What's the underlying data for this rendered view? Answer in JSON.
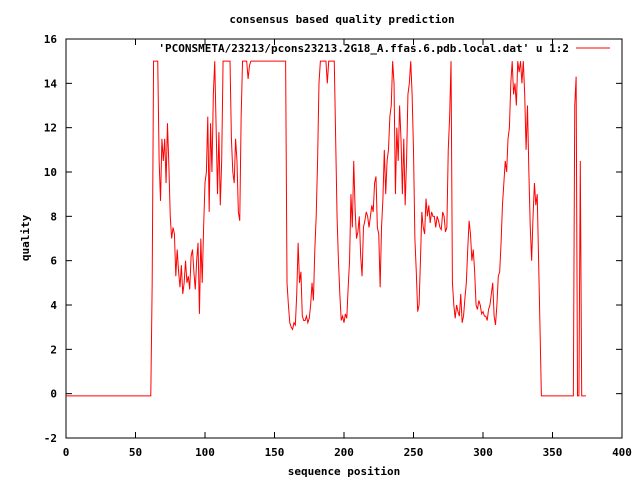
{
  "chart_data": {
    "type": "line",
    "title": "consensus based quality prediction",
    "xlabel": "sequence position",
    "ylabel": "quality",
    "xlim": [
      0,
      400
    ],
    "ylim": [
      -2,
      16
    ],
    "xticks": [
      0,
      50,
      100,
      150,
      200,
      250,
      300,
      350,
      400
    ],
    "yticks": [
      -2,
      0,
      2,
      4,
      6,
      8,
      10,
      12,
      14,
      16
    ],
    "grid": false,
    "legend_position": "top-right",
    "series": [
      {
        "name": "'PCONSMETA/23213/pcons23213.2G18_A.ffas.6.pdb.local.dat' u 1:2",
        "color": "#ff0000",
        "points": [
          [
            0,
            -0.1
          ],
          [
            61,
            -0.1
          ],
          [
            62,
            5
          ],
          [
            63,
            15
          ],
          [
            66,
            15
          ],
          [
            67,
            10.5
          ],
          [
            68,
            8.7
          ],
          [
            69,
            11.5
          ],
          [
            70,
            10.5
          ],
          [
            71,
            11.5
          ],
          [
            72,
            9.5
          ],
          [
            73,
            12.2
          ],
          [
            74,
            10.3
          ],
          [
            75,
            8
          ],
          [
            76,
            7
          ],
          [
            77,
            7.5
          ],
          [
            78,
            7.2
          ],
          [
            79,
            5.3
          ],
          [
            80,
            6.5
          ],
          [
            81,
            5.5
          ],
          [
            82,
            4.8
          ],
          [
            83,
            5.8
          ],
          [
            84,
            4.5
          ],
          [
            85,
            5
          ],
          [
            86,
            6
          ],
          [
            87,
            5
          ],
          [
            88,
            5.3
          ],
          [
            89,
            4.7
          ],
          [
            90,
            6.2
          ],
          [
            91,
            6.5
          ],
          [
            92,
            5.5
          ],
          [
            93,
            4.7
          ],
          [
            94,
            6
          ],
          [
            95,
            6.8
          ],
          [
            96,
            3.6
          ],
          [
            97,
            7
          ],
          [
            98,
            5
          ],
          [
            99,
            7.5
          ],
          [
            100,
            9.5
          ],
          [
            101,
            10
          ],
          [
            102,
            12.5
          ],
          [
            103,
            8.2
          ],
          [
            104,
            12.2
          ],
          [
            105,
            10
          ],
          [
            106,
            13.5
          ],
          [
            107,
            15
          ],
          [
            108,
            12
          ],
          [
            109,
            9
          ],
          [
            110,
            11.8
          ],
          [
            111,
            8.5
          ],
          [
            112,
            10.5
          ],
          [
            113,
            15
          ],
          [
            114,
            15
          ],
          [
            118,
            15
          ],
          [
            119,
            11.5
          ],
          [
            120,
            10
          ],
          [
            121,
            9.5
          ],
          [
            122,
            11.5
          ],
          [
            123,
            10.5
          ],
          [
            124,
            8.2
          ],
          [
            125,
            7.8
          ],
          [
            126,
            12.5
          ],
          [
            127,
            15
          ],
          [
            129,
            15
          ],
          [
            130,
            15
          ],
          [
            131,
            14.2
          ],
          [
            132,
            14.8
          ],
          [
            133,
            15
          ],
          [
            158,
            15
          ],
          [
            159,
            5
          ],
          [
            160,
            4
          ],
          [
            161,
            3.2
          ],
          [
            162,
            3
          ],
          [
            163,
            2.9
          ],
          [
            164,
            3.2
          ],
          [
            165,
            3.1
          ],
          [
            166,
            4.5
          ],
          [
            167,
            6.8
          ],
          [
            168,
            5
          ],
          [
            169,
            5.5
          ],
          [
            170,
            3.5
          ],
          [
            171,
            3.3
          ],
          [
            172,
            3.3
          ],
          [
            173,
            3.5
          ],
          [
            174,
            3.2
          ],
          [
            175,
            3.4
          ],
          [
            176,
            4
          ],
          [
            177,
            5
          ],
          [
            178,
            4.2
          ],
          [
            179,
            6.5
          ],
          [
            180,
            8
          ],
          [
            181,
            10.5
          ],
          [
            182,
            14
          ],
          [
            183,
            15
          ],
          [
            187,
            15
          ],
          [
            188,
            14
          ],
          [
            189,
            15
          ],
          [
            193,
            15
          ],
          [
            194,
            11.5
          ],
          [
            195,
            8
          ],
          [
            196,
            6
          ],
          [
            197,
            4.5
          ],
          [
            198,
            3.3
          ],
          [
            199,
            3.5
          ],
          [
            200,
            3.2
          ],
          [
            201,
            3.6
          ],
          [
            202,
            3.4
          ],
          [
            203,
            4.8
          ],
          [
            204,
            6
          ],
          [
            205,
            9
          ],
          [
            206,
            7.5
          ],
          [
            207,
            10.5
          ],
          [
            208,
            8.3
          ],
          [
            209,
            7
          ],
          [
            210,
            7.3
          ],
          [
            211,
            8
          ],
          [
            212,
            6.2
          ],
          [
            213,
            5.3
          ],
          [
            214,
            7.5
          ],
          [
            215,
            7.8
          ],
          [
            216,
            8.2
          ],
          [
            217,
            8
          ],
          [
            218,
            7.5
          ],
          [
            219,
            8
          ],
          [
            220,
            8.5
          ],
          [
            221,
            8.2
          ],
          [
            222,
            9.5
          ],
          [
            223,
            9.8
          ],
          [
            224,
            7.5
          ],
          [
            225,
            7.2
          ],
          [
            226,
            4.8
          ],
          [
            227,
            7.5
          ],
          [
            228,
            8.8
          ],
          [
            229,
            11
          ],
          [
            230,
            9
          ],
          [
            231,
            10.5
          ],
          [
            232,
            11
          ],
          [
            233,
            12.5
          ],
          [
            234,
            13
          ],
          [
            235,
            15
          ],
          [
            236,
            14
          ],
          [
            237,
            9
          ],
          [
            238,
            12
          ],
          [
            239,
            10.5
          ],
          [
            240,
            13
          ],
          [
            241,
            11.5
          ],
          [
            242,
            9
          ],
          [
            243,
            11.5
          ],
          [
            244,
            8.5
          ],
          [
            245,
            10.5
          ],
          [
            246,
            13.5
          ],
          [
            247,
            14
          ],
          [
            248,
            15
          ],
          [
            249,
            13.5
          ],
          [
            250,
            11
          ],
          [
            251,
            7
          ],
          [
            252,
            5.5
          ],
          [
            253,
            3.7
          ],
          [
            254,
            4
          ],
          [
            255,
            6
          ],
          [
            256,
            8.2
          ],
          [
            257,
            7.5
          ],
          [
            258,
            7.2
          ],
          [
            259,
            8.8
          ],
          [
            260,
            8
          ],
          [
            261,
            8.5
          ],
          [
            262,
            7.7
          ],
          [
            263,
            8.2
          ],
          [
            264,
            8
          ],
          [
            265,
            8
          ],
          [
            266,
            7.5
          ],
          [
            267,
            8
          ],
          [
            268,
            7.8
          ],
          [
            269,
            7.5
          ],
          [
            270,
            7.4
          ],
          [
            271,
            8.2
          ],
          [
            272,
            8
          ],
          [
            273,
            7.3
          ],
          [
            274,
            7.5
          ],
          [
            275,
            11
          ],
          [
            276,
            12.5
          ],
          [
            277,
            15
          ],
          [
            278,
            5
          ],
          [
            279,
            4
          ],
          [
            280,
            3.4
          ],
          [
            281,
            4
          ],
          [
            282,
            3.7
          ],
          [
            283,
            3.5
          ],
          [
            284,
            4.5
          ],
          [
            285,
            3.2
          ],
          [
            286,
            3.5
          ],
          [
            287,
            4.3
          ],
          [
            288,
            5
          ],
          [
            289,
            6.5
          ],
          [
            290,
            7.8
          ],
          [
            291,
            7.2
          ],
          [
            292,
            6
          ],
          [
            293,
            6.5
          ],
          [
            294,
            5.5
          ],
          [
            295,
            4
          ],
          [
            296,
            3.8
          ],
          [
            297,
            4.2
          ],
          [
            298,
            4
          ],
          [
            299,
            3.6
          ],
          [
            300,
            3.7
          ],
          [
            301,
            3.5
          ],
          [
            302,
            3.5
          ],
          [
            303,
            3.3
          ],
          [
            304,
            3.8
          ],
          [
            305,
            4
          ],
          [
            306,
            4.5
          ],
          [
            307,
            5
          ],
          [
            308,
            3.5
          ],
          [
            309,
            3.1
          ],
          [
            310,
            4
          ],
          [
            311,
            5.3
          ],
          [
            312,
            5.5
          ],
          [
            313,
            6.8
          ],
          [
            314,
            8.5
          ],
          [
            315,
            9.5
          ],
          [
            316,
            10.5
          ],
          [
            317,
            10
          ],
          [
            318,
            11.5
          ],
          [
            319,
            12
          ],
          [
            320,
            14
          ],
          [
            321,
            15
          ],
          [
            322,
            13.5
          ],
          [
            323,
            14
          ],
          [
            324,
            13
          ],
          [
            325,
            15
          ],
          [
            326,
            14.5
          ],
          [
            327,
            15
          ],
          [
            328,
            14
          ],
          [
            329,
            15
          ],
          [
            330,
            13.5
          ],
          [
            331,
            11
          ],
          [
            332,
            13
          ],
          [
            333,
            10
          ],
          [
            334,
            7.5
          ],
          [
            335,
            6
          ],
          [
            336,
            8
          ],
          [
            337,
            9.5
          ],
          [
            338,
            8.5
          ],
          [
            339,
            9
          ],
          [
            340,
            6
          ],
          [
            341,
            3
          ],
          [
            342,
            -0.1
          ],
          [
            365,
            -0.1
          ],
          [
            366,
            13
          ],
          [
            367,
            14.3
          ],
          [
            368,
            -0.1
          ],
          [
            369,
            -0.1
          ],
          [
            370,
            10.5
          ],
          [
            371,
            -0.1
          ],
          [
            374,
            -0.1
          ]
        ]
      }
    ]
  }
}
